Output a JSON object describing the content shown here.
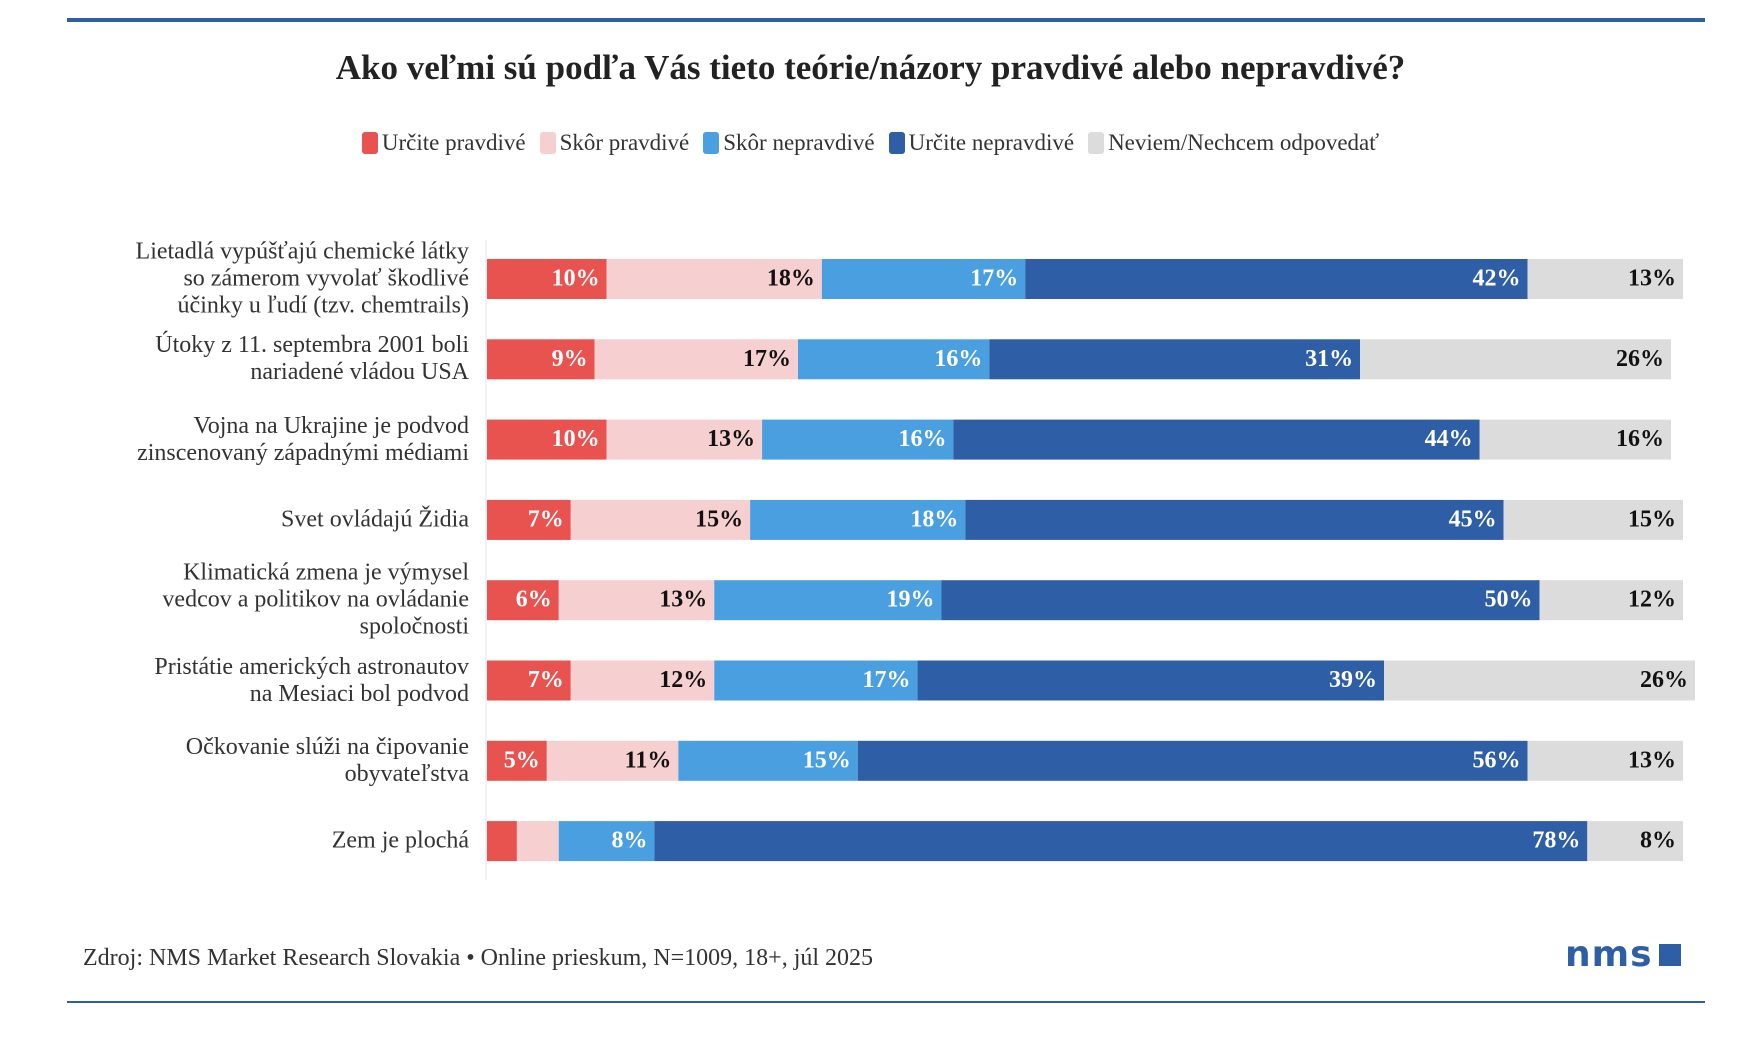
{
  "chart_data": {
    "type": "stacked-bar-horizontal",
    "title": "Ako veľmi sú podľa Vás tieto teórie/názory pravdivé alebo nepravdivé?",
    "categories": [
      "Lietadlá vypúšťajú chemické látky\nso zámerom vyvolať škodlivé\núčinky u ľudí (tzv. chemtrails)",
      "Útoky z 11. septembra 2001 boli\nnariadené vládou USA",
      "Vojna na Ukrajine je podvod\nzinscenovaný západnými médiami",
      "Svet ovládajú Židia",
      "Klimatická zmena je výmysel\nvedcov a politikov na ovládanie\nspoločnosti",
      "Pristátie amerických astronautov\nna Mesiaci bol podvod",
      "Očkovanie slúži na čipovanie\nobyvateľstva",
      "Zem je plochá"
    ],
    "series": [
      {
        "name": "Určite pravdivé",
        "color": "#e8524f",
        "label_color": "#ffffff",
        "values": [
          10,
          9,
          10,
          7,
          6,
          7,
          5,
          2.5
        ],
        "value_labels": [
          "10%",
          "9%",
          "10%",
          "7%",
          "6%",
          "7%",
          "5%",
          null
        ]
      },
      {
        "name": "Skôr pravdivé",
        "color": "#f6d0d0",
        "label_color": "#111111",
        "values": [
          18,
          17,
          13,
          15,
          13,
          12,
          11,
          3.5
        ],
        "value_labels": [
          "18%",
          "17%",
          "13%",
          "15%",
          "13%",
          "12%",
          "11%",
          null
        ]
      },
      {
        "name": "Skôr nepravdivé",
        "color": "#4a9fe0",
        "label_color": "#ffffff",
        "values": [
          17,
          16,
          16,
          18,
          19,
          17,
          15,
          8
        ],
        "value_labels": [
          "17%",
          "16%",
          "16%",
          "18%",
          "19%",
          "17%",
          "15%",
          "8%"
        ]
      },
      {
        "name": "Určite nepravdivé",
        "color": "#2e5fa6",
        "label_color": "#ffffff",
        "values": [
          42,
          31,
          44,
          45,
          50,
          39,
          56,
          78
        ],
        "value_labels": [
          "42%",
          "31%",
          "44%",
          "45%",
          "50%",
          "39%",
          "56%",
          "78%"
        ]
      },
      {
        "name": "Neviem/Nechcem odpovedať",
        "color": "#dcdcdc",
        "label_color": "#111111",
        "values": [
          13,
          26,
          16,
          15,
          12,
          26,
          13,
          8
        ],
        "value_labels": [
          "13%",
          "26%",
          "16%",
          "15%",
          "12%",
          "26%",
          "13%",
          "8%"
        ]
      }
    ],
    "xlim": [
      0,
      100
    ],
    "source": "Zdroj: NMS Market Research Slovakia • Online prieskum, N=1009, 18+, júl 2025",
    "logo": "nms"
  }
}
